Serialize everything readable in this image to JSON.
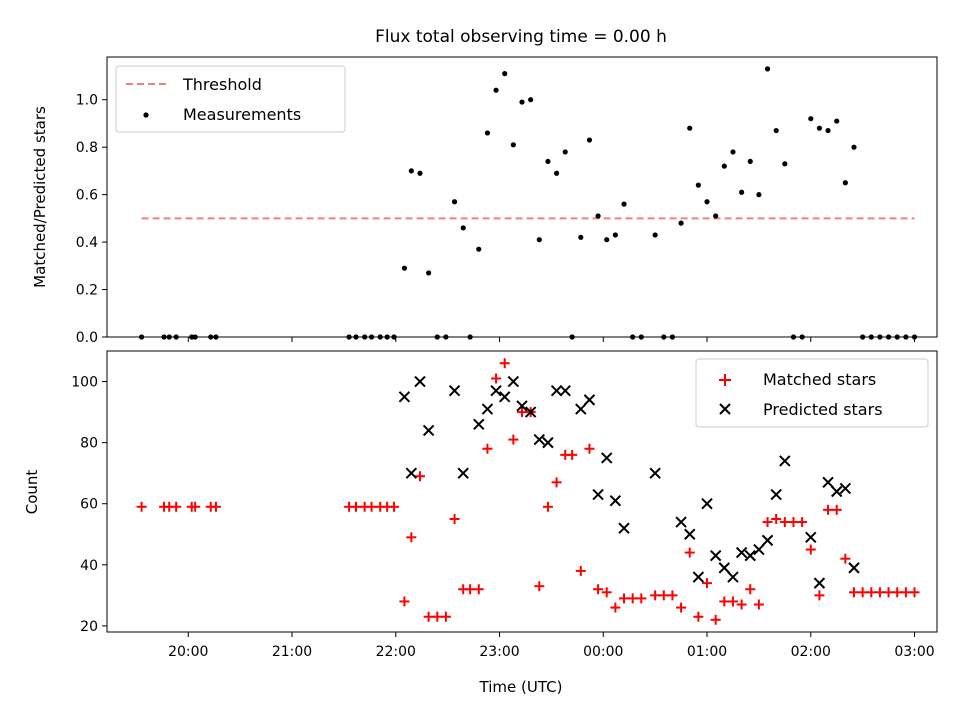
{
  "chart_data": [
    {
      "type": "scatter",
      "title": "Flux total observing time = 0.00 h",
      "xlabel": "",
      "ylabel": "Matched/Predicted stars",
      "ylim": [
        0,
        1.18
      ],
      "yticks": [
        0.0,
        0.2,
        0.4,
        0.6,
        0.8,
        1.0
      ],
      "ytick_labels": [
        "0.0",
        "0.2",
        "0.4",
        "0.6",
        "0.8",
        "1.0"
      ],
      "legend_position": "top-left",
      "threshold": {
        "name": "Threshold",
        "value": 0.5,
        "x_start": "19:33",
        "x_end": "03:00",
        "color": "#f08080"
      },
      "series": [
        {
          "name": "Measurements",
          "color": "#000000",
          "points": [
            [
              "19:33",
              0
            ],
            [
              "19:46",
              0
            ],
            [
              "19:49",
              0
            ],
            [
              "19:53",
              0
            ],
            [
              "20:02",
              0
            ],
            [
              "20:04",
              0
            ],
            [
              "20:13",
              0
            ],
            [
              "20:16",
              0
            ],
            [
              "21:33",
              0
            ],
            [
              "21:37",
              0
            ],
            [
              "21:42",
              0
            ],
            [
              "21:46",
              0
            ],
            [
              "21:51",
              0
            ],
            [
              "21:55",
              0
            ],
            [
              "21:59",
              0
            ],
            [
              "22:05",
              0.29
            ],
            [
              "22:09",
              0.7
            ],
            [
              "22:14",
              0.69
            ],
            [
              "22:19",
              0.27
            ],
            [
              "22:24",
              0
            ],
            [
              "22:29",
              0
            ],
            [
              "22:34",
              0.57
            ],
            [
              "22:39",
              0.46
            ],
            [
              "22:43",
              0
            ],
            [
              "22:48",
              0.37
            ],
            [
              "22:53",
              0.86
            ],
            [
              "22:58",
              1.04
            ],
            [
              "23:03",
              1.11
            ],
            [
              "23:08",
              0.81
            ],
            [
              "23:13",
              0.99
            ],
            [
              "23:18",
              1.0
            ],
            [
              "23:23",
              0.41
            ],
            [
              "23:28",
              0.74
            ],
            [
              "23:33",
              0.69
            ],
            [
              "23:38",
              0.78
            ],
            [
              "23:42",
              0
            ],
            [
              "23:47",
              0.42
            ],
            [
              "23:52",
              0.83
            ],
            [
              "23:57",
              0.51
            ],
            [
              "00:02",
              0.41
            ],
            [
              "00:07",
              0.43
            ],
            [
              "00:12",
              0.56
            ],
            [
              "00:17",
              0
            ],
            [
              "00:22",
              0
            ],
            [
              "00:30",
              0.43
            ],
            [
              "00:35",
              0
            ],
            [
              "00:40",
              0
            ],
            [
              "00:45",
              0.48
            ],
            [
              "00:50",
              0.88
            ],
            [
              "00:55",
              0.64
            ],
            [
              "01:00",
              0.57
            ],
            [
              "01:05",
              0.51
            ],
            [
              "01:10",
              0.72
            ],
            [
              "01:15",
              0.78
            ],
            [
              "01:20",
              0.61
            ],
            [
              "01:25",
              0.74
            ],
            [
              "01:30",
              0.6
            ],
            [
              "01:35",
              1.13
            ],
            [
              "01:40",
              0.87
            ],
            [
              "01:45",
              0.73
            ],
            [
              "01:50",
              0
            ],
            [
              "01:55",
              0
            ],
            [
              "02:00",
              0.92
            ],
            [
              "02:05",
              0.88
            ],
            [
              "02:10",
              0.87
            ],
            [
              "02:15",
              0.91
            ],
            [
              "02:20",
              0.65
            ],
            [
              "02:25",
              0.8
            ],
            [
              "02:30",
              0
            ],
            [
              "02:35",
              0
            ],
            [
              "02:40",
              0
            ],
            [
              "02:45",
              0
            ],
            [
              "02:50",
              0
            ],
            [
              "02:55",
              0
            ],
            [
              "03:00",
              0
            ]
          ]
        }
      ]
    },
    {
      "type": "scatter",
      "title": "",
      "xlabel": "Time (UTC)",
      "ylabel": "Count",
      "ylim": [
        18,
        110
      ],
      "yticks": [
        20,
        40,
        60,
        80,
        100
      ],
      "ytick_labels": [
        "20",
        "40",
        "60",
        "80",
        "100"
      ],
      "xlim": [
        "19:13",
        "03:13"
      ],
      "xtick_labels": [
        "20:00",
        "21:00",
        "22:00",
        "23:00",
        "00:00",
        "01:00",
        "02:00",
        "03:00"
      ],
      "legend_position": "top-right",
      "series": [
        {
          "name": "Matched stars",
          "color": "#ff0000",
          "marker": "plus",
          "points": [
            [
              "19:33",
              59
            ],
            [
              "19:46",
              59
            ],
            [
              "19:49",
              59
            ],
            [
              "19:53",
              59
            ],
            [
              "20:02",
              59
            ],
            [
              "20:04",
              59
            ],
            [
              "20:13",
              59
            ],
            [
              "20:16",
              59
            ],
            [
              "21:33",
              59
            ],
            [
              "21:37",
              59
            ],
            [
              "21:42",
              59
            ],
            [
              "21:46",
              59
            ],
            [
              "21:51",
              59
            ],
            [
              "21:55",
              59
            ],
            [
              "21:59",
              59
            ],
            [
              "22:05",
              28
            ],
            [
              "22:09",
              49
            ],
            [
              "22:14",
              69
            ],
            [
              "22:19",
              23
            ],
            [
              "22:24",
              23
            ],
            [
              "22:29",
              23
            ],
            [
              "22:34",
              55
            ],
            [
              "22:39",
              32
            ],
            [
              "22:43",
              32
            ],
            [
              "22:48",
              32
            ],
            [
              "22:53",
              78
            ],
            [
              "22:58",
              101
            ],
            [
              "23:03",
              106
            ],
            [
              "23:08",
              81
            ],
            [
              "23:13",
              90
            ],
            [
              "23:18",
              90
            ],
            [
              "23:23",
              33
            ],
            [
              "23:28",
              59
            ],
            [
              "23:33",
              67
            ],
            [
              "23:38",
              76
            ],
            [
              "23:42",
              76
            ],
            [
              "23:47",
              38
            ],
            [
              "23:52",
              78
            ],
            [
              "23:57",
              32
            ],
            [
              "00:02",
              31
            ],
            [
              "00:07",
              26
            ],
            [
              "00:12",
              29
            ],
            [
              "00:17",
              29
            ],
            [
              "00:22",
              29
            ],
            [
              "00:30",
              30
            ],
            [
              "00:35",
              30
            ],
            [
              "00:40",
              30
            ],
            [
              "00:45",
              26
            ],
            [
              "00:50",
              44
            ],
            [
              "00:55",
              23
            ],
            [
              "01:00",
              34
            ],
            [
              "01:05",
              22
            ],
            [
              "01:10",
              28
            ],
            [
              "01:15",
              28
            ],
            [
              "01:20",
              27
            ],
            [
              "01:25",
              32
            ],
            [
              "01:30",
              27
            ],
            [
              "01:35",
              54
            ],
            [
              "01:40",
              55
            ],
            [
              "01:45",
              54
            ],
            [
              "01:50",
              54
            ],
            [
              "01:55",
              54
            ],
            [
              "02:00",
              45
            ],
            [
              "02:05",
              30
            ],
            [
              "02:10",
              58
            ],
            [
              "02:15",
              58
            ],
            [
              "02:20",
              42
            ],
            [
              "02:25",
              31
            ],
            [
              "02:30",
              31
            ],
            [
              "02:35",
              31
            ],
            [
              "02:40",
              31
            ],
            [
              "02:45",
              31
            ],
            [
              "02:50",
              31
            ],
            [
              "02:55",
              31
            ],
            [
              "03:00",
              31
            ]
          ]
        },
        {
          "name": "Predicted stars",
          "color": "#000000",
          "marker": "x",
          "points": [
            [
              "22:05",
              95
            ],
            [
              "22:09",
              70
            ],
            [
              "22:14",
              100
            ],
            [
              "22:19",
              84
            ],
            [
              "22:34",
              97
            ],
            [
              "22:39",
              70
            ],
            [
              "22:48",
              86
            ],
            [
              "22:53",
              91
            ],
            [
              "22:58",
              97
            ],
            [
              "23:03",
              95
            ],
            [
              "23:08",
              100
            ],
            [
              "23:13",
              92
            ],
            [
              "23:18",
              90
            ],
            [
              "23:23",
              81
            ],
            [
              "23:28",
              80
            ],
            [
              "23:33",
              97
            ],
            [
              "23:38",
              97
            ],
            [
              "23:47",
              91
            ],
            [
              "23:52",
              94
            ],
            [
              "23:57",
              63
            ],
            [
              "00:02",
              75
            ],
            [
              "00:07",
              61
            ],
            [
              "00:12",
              52
            ],
            [
              "00:30",
              70
            ],
            [
              "00:45",
              54
            ],
            [
              "00:50",
              50
            ],
            [
              "00:55",
              36
            ],
            [
              "01:00",
              60
            ],
            [
              "01:05",
              43
            ],
            [
              "01:10",
              39
            ],
            [
              "01:15",
              36
            ],
            [
              "01:20",
              44
            ],
            [
              "01:25",
              43
            ],
            [
              "01:30",
              45
            ],
            [
              "01:35",
              48
            ],
            [
              "01:40",
              63
            ],
            [
              "01:45",
              74
            ],
            [
              "02:00",
              49
            ],
            [
              "02:05",
              34
            ],
            [
              "02:10",
              67
            ],
            [
              "02:15",
              64
            ],
            [
              "02:20",
              65
            ],
            [
              "02:25",
              39
            ]
          ]
        }
      ]
    }
  ]
}
